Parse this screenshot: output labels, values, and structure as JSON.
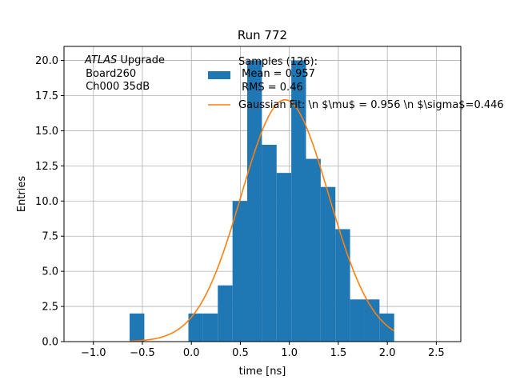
{
  "chart_data": {
    "type": "bar",
    "title": "Run 772",
    "xlabel": "time [ns]",
    "ylabel": "Entries",
    "xlim": [
      -1.3,
      2.75
    ],
    "ylim": [
      0,
      21
    ],
    "grid": true,
    "x_ticks": [
      -1.0,
      -0.5,
      0.0,
      0.5,
      1.0,
      1.5,
      2.0,
      2.5
    ],
    "x_tick_labels": [
      "−1.0",
      "−0.5",
      "0.0",
      "0.5",
      "1.0",
      "1.5",
      "2.0",
      "2.5"
    ],
    "y_ticks": [
      0.0,
      2.5,
      5.0,
      7.5,
      10.0,
      12.5,
      15.0,
      17.5,
      20.0
    ],
    "y_tick_labels": [
      "0.0",
      "2.5",
      "5.0",
      "7.5",
      "10.0",
      "12.5",
      "15.0",
      "17.5",
      "20.0"
    ],
    "bin_width": 0.15,
    "bins": [
      {
        "x0": -0.63,
        "count": 2
      },
      {
        "x0": -0.48,
        "count": 0
      },
      {
        "x0": -0.33,
        "count": 0
      },
      {
        "x0": -0.18,
        "count": 0
      },
      {
        "x0": -0.03,
        "count": 2
      },
      {
        "x0": 0.12,
        "count": 2
      },
      {
        "x0": 0.27,
        "count": 4
      },
      {
        "x0": 0.42,
        "count": 10
      },
      {
        "x0": 0.57,
        "count": 20
      },
      {
        "x0": 0.72,
        "count": 14
      },
      {
        "x0": 0.87,
        "count": 12
      },
      {
        "x0": 1.02,
        "count": 20
      },
      {
        "x0": 1.17,
        "count": 13
      },
      {
        "x0": 1.32,
        "count": 11
      },
      {
        "x0": 1.47,
        "count": 8
      },
      {
        "x0": 1.62,
        "count": 3
      },
      {
        "x0": 1.77,
        "count": 3
      },
      {
        "x0": 1.92,
        "count": 2
      }
    ],
    "histogram_color": "#1f77b4",
    "fit": {
      "mu": 0.956,
      "sigma": 0.446,
      "amplitude": 17.2,
      "x_range": [
        -0.63,
        2.07
      ],
      "color": "#ff7f0e"
    },
    "legend": {
      "placement": "top-center",
      "entries": [
        {
          "lines": [
            "Samples (126):",
            " Mean = 0.957",
            " RMS = 0.46"
          ]
        },
        {
          "lines": [
            "Gaussian Fit: \\n $\\mu$ = 0.956 \\n $\\sigma$=0.446"
          ]
        }
      ]
    },
    "annotation": {
      "italic": "ATLAS",
      "line1_rest": " Upgrade",
      "line2": " Board260",
      "line3": " Ch000 35dB"
    }
  }
}
